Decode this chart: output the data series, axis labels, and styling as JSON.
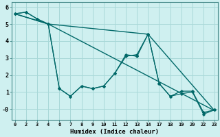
{
  "xlabel": "Humidex (Indice chaleur)",
  "bg_color": "#cff0f0",
  "grid_color": "#a8d8d8",
  "line_color": "#006868",
  "series": [
    {
      "xi": [
        0,
        1,
        2,
        3,
        4,
        5,
        6,
        7,
        8,
        9,
        10,
        11,
        12,
        13,
        14,
        15,
        16,
        17,
        18
      ],
      "y": [
        5.6,
        5.7,
        5.3,
        5.0,
        1.2,
        0.75,
        1.35,
        1.2,
        1.35,
        2.1,
        3.2,
        3.1,
        4.4,
        1.5,
        0.75,
        1.05,
        1.05,
        -0.2,
        -0.05
      ],
      "marker": true
    },
    {
      "xi": [
        0,
        1,
        2,
        3,
        4,
        5,
        6,
        7,
        8,
        9,
        10,
        11,
        12,
        13,
        14,
        15,
        16,
        17,
        18
      ],
      "y": [
        5.6,
        5.7,
        5.3,
        5.0,
        1.2,
        0.75,
        1.35,
        1.2,
        1.35,
        2.1,
        3.1,
        3.2,
        4.4,
        1.5,
        0.75,
        0.9,
        1.0,
        -0.3,
        -0.05
      ],
      "marker": true
    },
    {
      "xi": [
        0,
        3,
        18
      ],
      "y": [
        5.6,
        5.0,
        -0.1
      ],
      "marker": false
    },
    {
      "xi": [
        0,
        3,
        12,
        18
      ],
      "y": [
        5.6,
        5.0,
        4.4,
        -0.1
      ],
      "marker": false
    }
  ],
  "xtick_positions": [
    0,
    1,
    2,
    3,
    4,
    5,
    6,
    7,
    8,
    9,
    10,
    11,
    12,
    13,
    14,
    15,
    16,
    17,
    18
  ],
  "xtick_labels": [
    "0",
    "2",
    "3",
    "4",
    "6",
    "7",
    "8",
    "9",
    "10",
    "11",
    "12",
    "13",
    "14",
    "17",
    "18",
    "19",
    "20",
    "22",
    "23"
  ],
  "yticks": [
    0,
    1,
    2,
    3,
    4,
    5,
    6
  ],
  "ytick_labels": [
    "-0",
    "1",
    "2",
    "3",
    "4",
    "5",
    "6"
  ],
  "ylim": [
    -0.65,
    6.3
  ],
  "xlim": [
    -0.3,
    18.3
  ]
}
